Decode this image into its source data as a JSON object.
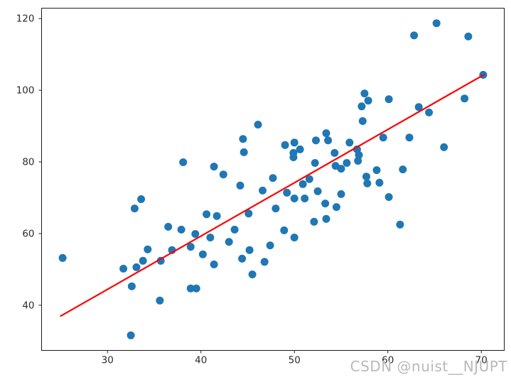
{
  "figure": {
    "background": "#ffffff",
    "watermark": {
      "text": "CSDN @nuist__NJUPT",
      "color": "#b9b9b9"
    }
  },
  "chart_data": {
    "type": "scatter",
    "title": "",
    "xlabel": "",
    "ylabel": "",
    "grid": false,
    "legend_position": "none",
    "xlim": [
      22.95,
      72.45
    ],
    "ylim": [
      27.4,
      122.9
    ],
    "x_ticks": [
      "30",
      "40",
      "50",
      "60",
      "70"
    ],
    "x_tick_values": [
      30,
      40,
      50,
      60,
      70
    ],
    "y_ticks": [
      "40",
      "60",
      "80",
      "100",
      "120"
    ],
    "y_tick_values": [
      40,
      60,
      80,
      100,
      120
    ],
    "axis_color": "#1c1c1c",
    "tick_label_color": "#2b2b2b",
    "series": [
      {
        "name": "scatter-points",
        "type": "scatter",
        "color": "#1f77b4",
        "marker_radius": 5.5,
        "points": [
          [
            65.2,
            118.7
          ],
          [
            62.8,
            115.3
          ],
          [
            68.6,
            115.0
          ],
          [
            70.2,
            104.3
          ],
          [
            57.5,
            99.1
          ],
          [
            57.9,
            97.1
          ],
          [
            57.2,
            95.5
          ],
          [
            60.1,
            97.5
          ],
          [
            63.3,
            95.3
          ],
          [
            64.4,
            93.8
          ],
          [
            68.2,
            97.7
          ],
          [
            57.3,
            91.4
          ],
          [
            46.1,
            90.4
          ],
          [
            44.5,
            86.4
          ],
          [
            44.6,
            82.7
          ],
          [
            38.1,
            79.9
          ],
          [
            41.4,
            78.7
          ],
          [
            42.4,
            76.5
          ],
          [
            44.2,
            73.4
          ],
          [
            46.6,
            72.0
          ],
          [
            47.7,
            75.5
          ],
          [
            33.6,
            69.6
          ],
          [
            32.9,
            67.0
          ],
          [
            40.6,
            65.4
          ],
          [
            41.7,
            64.9
          ],
          [
            36.5,
            61.9
          ],
          [
            37.9,
            61.1
          ],
          [
            39.4,
            59.9
          ],
          [
            41.0,
            58.9
          ],
          [
            43.6,
            61.1
          ],
          [
            45.1,
            65.6
          ],
          [
            53.4,
            88.0
          ],
          [
            49.0,
            84.7
          ],
          [
            50.0,
            85.4
          ],
          [
            50.6,
            83.5
          ],
          [
            49.9,
            82.5
          ],
          [
            49.9,
            81.3
          ],
          [
            52.3,
            86.0
          ],
          [
            53.6,
            86.0
          ],
          [
            54.3,
            82.5
          ],
          [
            52.2,
            79.7
          ],
          [
            54.4,
            78.9
          ],
          [
            55.0,
            78.1
          ],
          [
            55.6,
            79.7
          ],
          [
            55.9,
            85.4
          ],
          [
            56.7,
            83.5
          ],
          [
            56.9,
            81.9
          ],
          [
            56.8,
            80.3
          ],
          [
            59.5,
            86.8
          ],
          [
            62.3,
            86.8
          ],
          [
            58.8,
            77.7
          ],
          [
            61.6,
            77.9
          ],
          [
            57.7,
            75.9
          ],
          [
            57.8,
            74.0
          ],
          [
            59.1,
            74.2
          ],
          [
            66.0,
            84.1
          ],
          [
            50.9,
            73.8
          ],
          [
            51.6,
            75.2
          ],
          [
            49.2,
            71.4
          ],
          [
            50.0,
            69.8
          ],
          [
            51.1,
            69.8
          ],
          [
            52.5,
            71.8
          ],
          [
            53.3,
            68.4
          ],
          [
            55.0,
            71.0
          ],
          [
            60.1,
            70.2
          ],
          [
            52.1,
            63.3
          ],
          [
            53.4,
            64.1
          ],
          [
            61.3,
            62.5
          ],
          [
            48.9,
            60.9
          ],
          [
            50.0,
            58.9
          ],
          [
            48.0,
            67.0
          ],
          [
            54.5,
            67.4
          ],
          [
            25.2,
            53.2
          ],
          [
            31.7,
            50.2
          ],
          [
            33.1,
            50.6
          ],
          [
            33.8,
            52.4
          ],
          [
            34.3,
            55.6
          ],
          [
            35.7,
            52.4
          ],
          [
            36.9,
            55.4
          ],
          [
            38.9,
            56.3
          ],
          [
            40.2,
            54.2
          ],
          [
            41.4,
            51.4
          ],
          [
            43.0,
            57.7
          ],
          [
            44.4,
            53.0
          ],
          [
            45.2,
            55.4
          ],
          [
            45.5,
            48.6
          ],
          [
            47.4,
            56.7
          ],
          [
            46.8,
            52.1
          ],
          [
            32.6,
            45.3
          ],
          [
            38.9,
            44.7
          ],
          [
            39.5,
            44.7
          ],
          [
            35.6,
            41.3
          ],
          [
            32.5,
            31.6
          ]
        ]
      },
      {
        "name": "regression-line",
        "type": "line",
        "color": "#ff0000",
        "line_width": 2.2,
        "points": [
          [
            25.0,
            37.0
          ],
          [
            70.25,
            104.3
          ]
        ]
      }
    ]
  }
}
